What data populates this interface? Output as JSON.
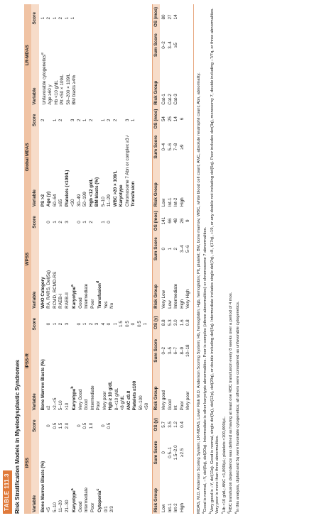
{
  "table_label": "TABLE 111.3",
  "title": "Risk Stratification Models in Myelodysplastic Syndromes",
  "column_headers": {
    "variable": "Variable",
    "score": "Score",
    "risk_group": "Risk Group",
    "sum_score": "Sum Score"
  },
  "models": [
    {
      "name": "IPSS",
      "os_label": "OS (y)",
      "variables": [
        {
          "label": "Bone Marrow Blasts (%)",
          "heading": true
        },
        {
          "label": "<5",
          "score": "0"
        },
        {
          "label": "5–10",
          "score": "0.5"
        },
        {
          "label": "11–20",
          "score": "1.5"
        },
        {
          "label": "21–30",
          "score": "2.0"
        },
        {
          "label": "Karyotype",
          "note": "a",
          "heading": true
        },
        {
          "label": "Good",
          "score": "0"
        },
        {
          "label": "Intermediate",
          "score": "0.5"
        },
        {
          "label": "Poor",
          "score": "1.0"
        },
        {
          "label": "Cytopenia",
          "note": "c",
          "heading": true
        },
        {
          "label": "0/1",
          "score": "0"
        },
        {
          "label": "2/3",
          "score": "0.5"
        }
      ],
      "risk_groups": [
        {
          "group": "Low",
          "sum": "0",
          "os": "5.7"
        },
        {
          "group": "Int-1",
          "sum": "0.5–1",
          "os": "3.5"
        },
        {
          "group": "Int-2",
          "sum": "1.5–2.0",
          "os": "1.2"
        },
        {
          "group": "High",
          "sum": "≥2.5",
          "os": "0.4"
        }
      ]
    },
    {
      "name": "IPSS-R",
      "os_label": "OS (y)",
      "variables": [
        {
          "label": "Bone Marrow Blasts (%)",
          "heading": true
        },
        {
          "label": "≤2",
          "score": "0"
        },
        {
          "label": ">2–<5",
          "score": "1"
        },
        {
          "label": "5–10",
          "score": "2"
        },
        {
          "label": ">10",
          "score": "3"
        },
        {
          "label": "Karyotype",
          "note": "b",
          "heading": true
        },
        {
          "label": "Very Good",
          "score": "0"
        },
        {
          "label": "Good",
          "score": "1"
        },
        {
          "label": "Intermediate",
          "score": "2"
        },
        {
          "label": "Poor",
          "score": "3"
        },
        {
          "label": "Very poor",
          "score": "4"
        },
        {
          "label": "Hgb ≥ 10 g/dL",
          "score": "0",
          "heading": true
        },
        {
          "label": "8–<10 g/dL",
          "score": "1"
        },
        {
          "label": "<8 g/dL",
          "score": "1.5"
        },
        {
          "label": "ANC ≤0.8",
          "score": "0.5",
          "heading": true
        },
        {
          "label": "Platelets ≥100",
          "score": "0",
          "heading": true
        },
        {
          "label": "50–100",
          "score": "0.5"
        },
        {
          "label": "<50",
          "score": "1"
        }
      ],
      "risk_groups": [
        {
          "group": "Very good",
          "sum": "0–2",
          "os": "8.8"
        },
        {
          "group": "Good",
          "sum": "3–5",
          "os": "5.3"
        },
        {
          "group": "Int",
          "sum": "6–7",
          "os": "3.0"
        },
        {
          "group": "Poor",
          "sum": "8–9",
          "os": "1.6"
        },
        {
          "group": "Very poor",
          "sum": "10–18",
          "os": "0.8"
        }
      ]
    },
    {
      "name": "WPSS",
      "os_label": "OS (mos)",
      "variables": [
        {
          "label": "WHO Category",
          "heading": true
        },
        {
          "label": "RA, RARS, Del(5q)",
          "score": "0"
        },
        {
          "label": "RCMD, RCMD-RS",
          "score": "1"
        },
        {
          "label": "RAEB-I",
          "score": "2"
        },
        {
          "label": "RAEB-II",
          "score": "3"
        },
        {
          "label": "Karyotype",
          "note": "a",
          "heading": true
        },
        {
          "label": "Good",
          "score": "0"
        },
        {
          "label": "Intermediate",
          "score": "1"
        },
        {
          "label": "Poor",
          "score": "2"
        },
        {
          "label": "Transfusion",
          "note": "d",
          "heading": true
        },
        {
          "label": "Yes",
          "score": "1"
        },
        {
          "label": "No",
          "score": "0"
        }
      ],
      "risk_groups": [
        {
          "group": "Very Low",
          "sum": "0",
          "os": "141"
        },
        {
          "group": "Low",
          "sum": "1",
          "os": "66"
        },
        {
          "group": "Intermediate",
          "sum": "2",
          "os": "48"
        },
        {
          "group": "High",
          "sum": "3–4",
          "os": "26"
        },
        {
          "group": "Very High",
          "sum": "5–6",
          "os": "9"
        }
      ]
    },
    {
      "name": "Global MDAS",
      "os_label": "OS (mos)",
      "variables": [
        {
          "label": "PS >2",
          "score": "2",
          "heading": true
        },
        {
          "label": "Age (y)",
          "heading": true
        },
        {
          "label": "60–64",
          "score": "1"
        },
        {
          "label": "≥65",
          "score": "2"
        },
        {
          "label": "Platelets (×109/L)",
          "heading": true
        },
        {
          "label": "<30",
          "score": "3"
        },
        {
          "label": "30–49",
          "score": "2"
        },
        {
          "label": "50–199",
          "score": "1"
        },
        {
          "label": "Hgb <12 g/dL",
          "score": "2",
          "heading": true
        },
        {
          "label": "BM blasts (%)",
          "heading": true
        },
        {
          "label": "5–10",
          "score": "1"
        },
        {
          "label": "11–29",
          "score": "2"
        },
        {
          "label": "WBC >20 × 109/L",
          "score": "2",
          "heading": true
        },
        {
          "label": "Karyotype",
          "heading": true
        },
        {
          "label": "Chromosome 7 Abn or complex ≥3 Abns",
          "score": "3"
        },
        {
          "label": "Transfusion",
          "score": "1",
          "heading": true
        }
      ],
      "risk_groups": [
        {
          "group": "Low",
          "sum": "0–4",
          "os": "54"
        },
        {
          "group": "Int-1",
          "sum": "5–6",
          "os": "25"
        },
        {
          "group": "Int-2",
          "sum": "7–8",
          "os": "14"
        },
        {
          "group": "High",
          "sum": "≥9",
          "os": "6"
        }
      ]
    },
    {
      "name": "LR-MDAS",
      "os_label": "OS (mos)",
      "variables": [
        {
          "label": "Unfavorable cytogenetics",
          "note": "e",
          "score": "1"
        },
        {
          "label": "Age ≥60 y",
          "score": "2"
        },
        {
          "label": "Hb <10 g/dL",
          "score": "1"
        },
        {
          "label": "Plt <50 × 109/L",
          "score": "2"
        },
        {
          "label": "50–200 × 109/L",
          "score": "1"
        },
        {
          "label": "BM blasts ≥4%",
          "score": "1"
        }
      ],
      "risk_groups": [
        {
          "group": "Cat-1",
          "sum": "0–2",
          "os": "80"
        },
        {
          "group": "Cat-2",
          "sum": "3–4",
          "os": "27"
        },
        {
          "group": "Cat-3",
          "sum": "≥5",
          "os": "14"
        }
      ]
    }
  ],
  "footnotes": [
    {
      "text": "MDAS, M.D. Anderson Scoring System; LR-MDAS, Lower Risk M.D. Anderson Scoring System; Hb, hemoglobin; Hgb, hemoglobin; Plt, platelet; BM, bone marrow; WBC, white blood cell count; ANC, absolute neutrophil count; Abn, abnormality."
    },
    {
      "mark": "a",
      "text": "Good is normal, −Y, del(5q), del(20q). Intermediate is other karyotypic abnormalities. Poor is complex (≥three abnormalities) or chromosome 7 abnormalities."
    },
    {
      "mark": "b",
      "text": "Very good is −Y, del(11q). Good is normal, single del(5q), del(12p), del(20q), or double including del(5q). Intermediate includes single del(7q), +8, i(17q), +19, or any double not including del(5q). Poor includes der(3q), monosomy 7, double including −7/7q, or three abnormalities. Very poor is more than three abnormalities."
    },
    {
      "mark": "c",
      "text": "Hb <10 g/dL; ANC <1,800/µL; platelets <100,000/µL."
    },
    {
      "mark": "d",
      "text": "RBC transfusion dependence was defined as having at least one RBC transfusion every 8 weeks over a period of 4 mos."
    },
    {
      "mark": "e",
      "text": "In this analysis, diploid and 5q were favorable cytogenetics; all others were considered as unfavorable cytogenetics."
    }
  ]
}
